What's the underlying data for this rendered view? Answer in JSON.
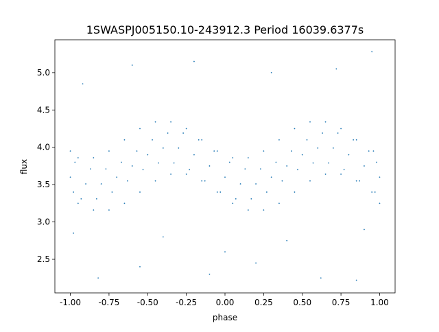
{
  "chart_data": {
    "type": "scatter",
    "title": "1SWASPJ005150.10-243912.3 Period 16039.6377s",
    "xlabel": "phase",
    "ylabel": "flux",
    "xlim": [
      -1.1,
      1.1
    ],
    "ylim": [
      2.05,
      5.44
    ],
    "xticks": [
      "-1.00",
      "-0.75",
      "-0.50",
      "-0.25",
      "0.00",
      "0.25",
      "0.50",
      "0.75",
      "1.00"
    ],
    "yticks": [
      "2.5",
      "3.0",
      "3.5",
      "4.0",
      "4.5",
      "5.0"
    ],
    "grid": false,
    "color": "#1f77b4",
    "points": [
      [
        -1.0,
        3.6
      ],
      [
        -0.97,
        3.8
      ],
      [
        -0.98,
        3.4
      ],
      [
        -0.95,
        3.25
      ],
      [
        -1.0,
        3.95
      ],
      [
        -0.9,
        3.51
      ],
      [
        -0.87,
        3.71
      ],
      [
        -0.93,
        3.31
      ],
      [
        -0.85,
        3.16
      ],
      [
        -0.95,
        3.86
      ],
      [
        -0.8,
        3.51
      ],
      [
        -0.77,
        3.71
      ],
      [
        -0.83,
        3.31
      ],
      [
        -0.75,
        3.16
      ],
      [
        -0.85,
        3.86
      ],
      [
        -0.7,
        3.6
      ],
      [
        -0.67,
        3.8
      ],
      [
        -0.73,
        3.4
      ],
      [
        -0.65,
        3.25
      ],
      [
        -0.75,
        3.95
      ],
      [
        -0.6,
        3.75
      ],
      [
        -0.57,
        3.95
      ],
      [
        -0.63,
        3.55
      ],
      [
        -0.55,
        3.4
      ],
      [
        -0.65,
        4.1
      ],
      [
        -0.5,
        3.9
      ],
      [
        -0.47,
        4.1
      ],
      [
        -0.53,
        3.7
      ],
      [
        -0.45,
        3.55
      ],
      [
        -0.55,
        4.25
      ],
      [
        -0.4,
        3.99
      ],
      [
        -0.37,
        4.19
      ],
      [
        -0.43,
        3.79
      ],
      [
        -0.35,
        3.64
      ],
      [
        -0.45,
        4.34
      ],
      [
        -0.3,
        3.99
      ],
      [
        -0.27,
        4.19
      ],
      [
        -0.33,
        3.79
      ],
      [
        -0.25,
        3.64
      ],
      [
        -0.35,
        4.34
      ],
      [
        -0.2,
        3.9
      ],
      [
        -0.17,
        4.1
      ],
      [
        -0.23,
        3.7
      ],
      [
        -0.15,
        3.55
      ],
      [
        -0.25,
        4.25
      ],
      [
        -0.1,
        3.75
      ],
      [
        -0.07,
        3.95
      ],
      [
        -0.13,
        3.55
      ],
      [
        -0.05,
        3.4
      ],
      [
        -0.15,
        4.1
      ],
      [
        0.0,
        3.6
      ],
      [
        0.03,
        3.8
      ],
      [
        -0.03,
        3.4
      ],
      [
        0.05,
        3.25
      ],
      [
        -0.05,
        3.95
      ],
      [
        0.1,
        3.51
      ],
      [
        0.13,
        3.71
      ],
      [
        0.07,
        3.31
      ],
      [
        0.15,
        3.16
      ],
      [
        0.05,
        3.86
      ],
      [
        0.2,
        3.51
      ],
      [
        0.23,
        3.71
      ],
      [
        0.17,
        3.31
      ],
      [
        0.25,
        3.16
      ],
      [
        0.15,
        3.86
      ],
      [
        0.3,
        3.6
      ],
      [
        0.33,
        3.8
      ],
      [
        0.27,
        3.4
      ],
      [
        0.35,
        3.25
      ],
      [
        0.25,
        3.95
      ],
      [
        0.4,
        3.75
      ],
      [
        0.43,
        3.95
      ],
      [
        0.37,
        3.55
      ],
      [
        0.45,
        3.4
      ],
      [
        0.35,
        4.1
      ],
      [
        0.5,
        3.9
      ],
      [
        0.53,
        4.1
      ],
      [
        0.47,
        3.7
      ],
      [
        0.55,
        3.55
      ],
      [
        0.45,
        4.25
      ],
      [
        0.6,
        3.99
      ],
      [
        0.63,
        4.19
      ],
      [
        0.57,
        3.79
      ],
      [
        0.65,
        3.64
      ],
      [
        0.55,
        4.34
      ],
      [
        0.7,
        3.99
      ],
      [
        0.73,
        4.19
      ],
      [
        0.67,
        3.79
      ],
      [
        0.75,
        3.64
      ],
      [
        0.65,
        4.34
      ],
      [
        0.8,
        3.9
      ],
      [
        0.83,
        4.1
      ],
      [
        0.77,
        3.7
      ],
      [
        0.85,
        3.55
      ],
      [
        0.75,
        4.25
      ],
      [
        0.9,
        3.75
      ],
      [
        0.93,
        3.95
      ],
      [
        0.87,
        3.55
      ],
      [
        0.95,
        3.4
      ],
      [
        0.85,
        4.1
      ],
      [
        1.0,
        3.6
      ],
      [
        0.97,
        3.4
      ],
      [
        0.98,
        3.8
      ],
      [
        1.0,
        3.25
      ],
      [
        0.96,
        3.95
      ],
      [
        -0.92,
        4.85
      ],
      [
        -0.6,
        5.1
      ],
      [
        -0.2,
        5.15
      ],
      [
        0.3,
        5.0
      ],
      [
        0.72,
        5.05
      ],
      [
        0.95,
        5.28
      ],
      [
        -0.82,
        2.25
      ],
      [
        -0.55,
        2.4
      ],
      [
        -0.1,
        2.3
      ],
      [
        0.2,
        2.45
      ],
      [
        0.62,
        2.25
      ],
      [
        0.85,
        2.22
      ],
      [
        -0.98,
        2.85
      ],
      [
        -0.4,
        2.8
      ],
      [
        0.0,
        2.6
      ],
      [
        0.4,
        2.75
      ],
      [
        0.9,
        2.9
      ]
    ]
  }
}
